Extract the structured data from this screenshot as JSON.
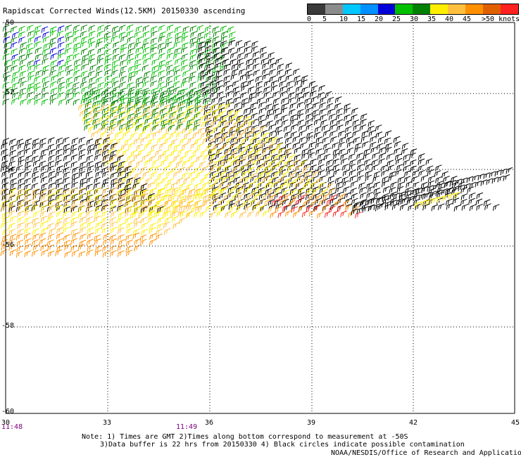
{
  "title": "Rapidscat Corrected Winds(12.5KM) 20150330 ascending",
  "legend": {
    "unit_label": ">50 knots",
    "tick_labels": [
      "0",
      "5",
      "10",
      "15",
      "20",
      "25",
      "30",
      "35",
      "40",
      "45"
    ],
    "colors": [
      "#3a3a3a",
      "#8c8c8c",
      "#00c8ff",
      "#0090ff",
      "#0000d8",
      "#00c000",
      "#008000",
      "#ffee00",
      "#ffc040",
      "#ff9000",
      "#e06000",
      "#ff2020",
      "#d00000",
      "#8b4513",
      "#d0a080",
      "#ff00ff",
      "#c000c0",
      "#6000a0"
    ]
  },
  "map": {
    "lat_labels": [
      "-50",
      "-52",
      "-54",
      "-56",
      "-58",
      "-60"
    ],
    "lon_labels": [
      "30",
      "33",
      "36",
      "39",
      "42",
      "45"
    ],
    "time_labels": [
      "11:48",
      "11:49"
    ],
    "lat_range": [
      -60,
      -50
    ],
    "lon_range": [
      30,
      45
    ],
    "grid": true
  },
  "notes": {
    "line1": "Note: 1) Times are GMT 2)Times along bottom correspond to measurement at -50S",
    "line2": "3)Data buffer is 22 hrs from 20150330 4) Black circles indicate possible contamination"
  },
  "credit": "NOAA/NESDIS/Office of Research and Applications"
}
